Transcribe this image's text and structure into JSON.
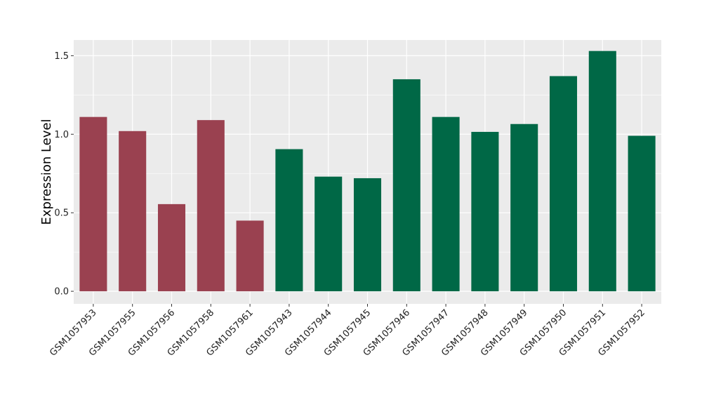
{
  "chart_data": {
    "type": "bar",
    "categories": [
      "GSM1057953",
      "GSM1057955",
      "GSM1057956",
      "GSM1057958",
      "GSM1057961",
      "GSM1057943",
      "GSM1057944",
      "GSM1057945",
      "GSM1057946",
      "GSM1057947",
      "GSM1057948",
      "GSM1057949",
      "GSM1057950",
      "GSM1057951",
      "GSM1057952"
    ],
    "values": [
      1.11,
      1.02,
      0.555,
      1.09,
      0.45,
      0.905,
      0.73,
      0.72,
      1.35,
      1.11,
      1.015,
      1.065,
      1.37,
      1.53,
      0.99
    ],
    "bar_colors": [
      "#9a4150",
      "#9a4150",
      "#9a4150",
      "#9a4150",
      "#9a4150",
      "#006846",
      "#006846",
      "#006846",
      "#006846",
      "#006846",
      "#006846",
      "#006846",
      "#006846",
      "#006846",
      "#006846"
    ],
    "title": "",
    "xlabel": "",
    "ylabel": "Expression Level",
    "ylim": [
      -0.08,
      1.6
    ],
    "yticks": [
      0.0,
      0.5,
      1.0,
      1.5
    ],
    "ytick_labels": [
      "0.0",
      "0.5",
      "1.0",
      "1.5"
    ],
    "grid": true,
    "legend": "none",
    "panel_color": "#ebebeb",
    "grid_color": "#ffffff"
  }
}
